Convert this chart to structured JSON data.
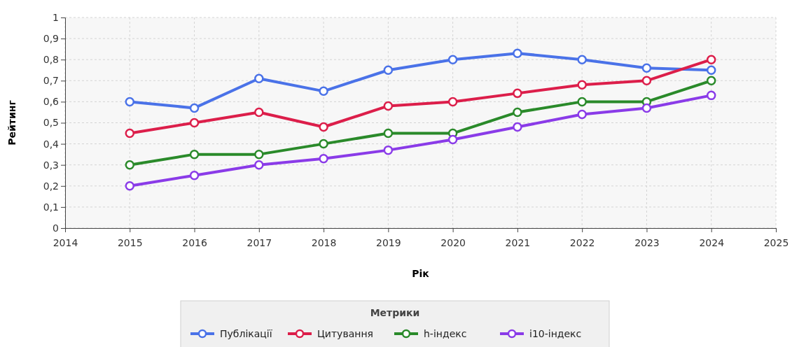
{
  "chart_data": {
    "type": "line",
    "xlabel": "Рік",
    "ylabel": "Рейтинг",
    "legend_title": "Метрики",
    "x": [
      2015,
      2016,
      2017,
      2018,
      2019,
      2020,
      2021,
      2022,
      2023,
      2024
    ],
    "series": [
      {
        "name": "Публікації",
        "color": "#4a72e8",
        "values": [
          0.6,
          0.57,
          0.71,
          0.65,
          0.75,
          0.8,
          0.83,
          0.8,
          0.76,
          0.75
        ]
      },
      {
        "name": "Цитування",
        "color": "#dc1e4a",
        "values": [
          0.45,
          0.5,
          0.55,
          0.48,
          0.58,
          0.6,
          0.64,
          0.68,
          0.7,
          0.8
        ]
      },
      {
        "name": "h-індекс",
        "color": "#2a8a2a",
        "values": [
          0.3,
          0.35,
          0.35,
          0.4,
          0.45,
          0.45,
          0.55,
          0.6,
          0.6,
          0.7
        ]
      },
      {
        "name": "i10-індекс",
        "color": "#8a3be8",
        "values": [
          0.2,
          0.25,
          0.3,
          0.33,
          0.37,
          0.42,
          0.48,
          0.54,
          0.57,
          0.63
        ]
      }
    ],
    "xlim": [
      2014,
      2025
    ],
    "xticks": [
      2014,
      2015,
      2016,
      2017,
      2018,
      2019,
      2020,
      2021,
      2022,
      2023,
      2024,
      2025
    ],
    "ylim": [
      0,
      1
    ],
    "yticks": [
      0,
      {
        "value": 0.1,
        "label": "0,1"
      },
      {
        "value": 0.2,
        "label": "0,2"
      },
      {
        "value": 0.3,
        "label": "0,3"
      },
      {
        "value": 0.4,
        "label": "0,4"
      },
      {
        "value": 0.5,
        "label": "0,5"
      },
      {
        "value": 0.6,
        "label": "0,6"
      },
      {
        "value": 0.7,
        "label": "0,7"
      },
      {
        "value": 0.8,
        "label": "0,8"
      },
      {
        "value": 0.9,
        "label": "0,9"
      },
      1
    ],
    "grid": true,
    "legend": "bottom",
    "marker": "circle",
    "line_style": "solid"
  }
}
